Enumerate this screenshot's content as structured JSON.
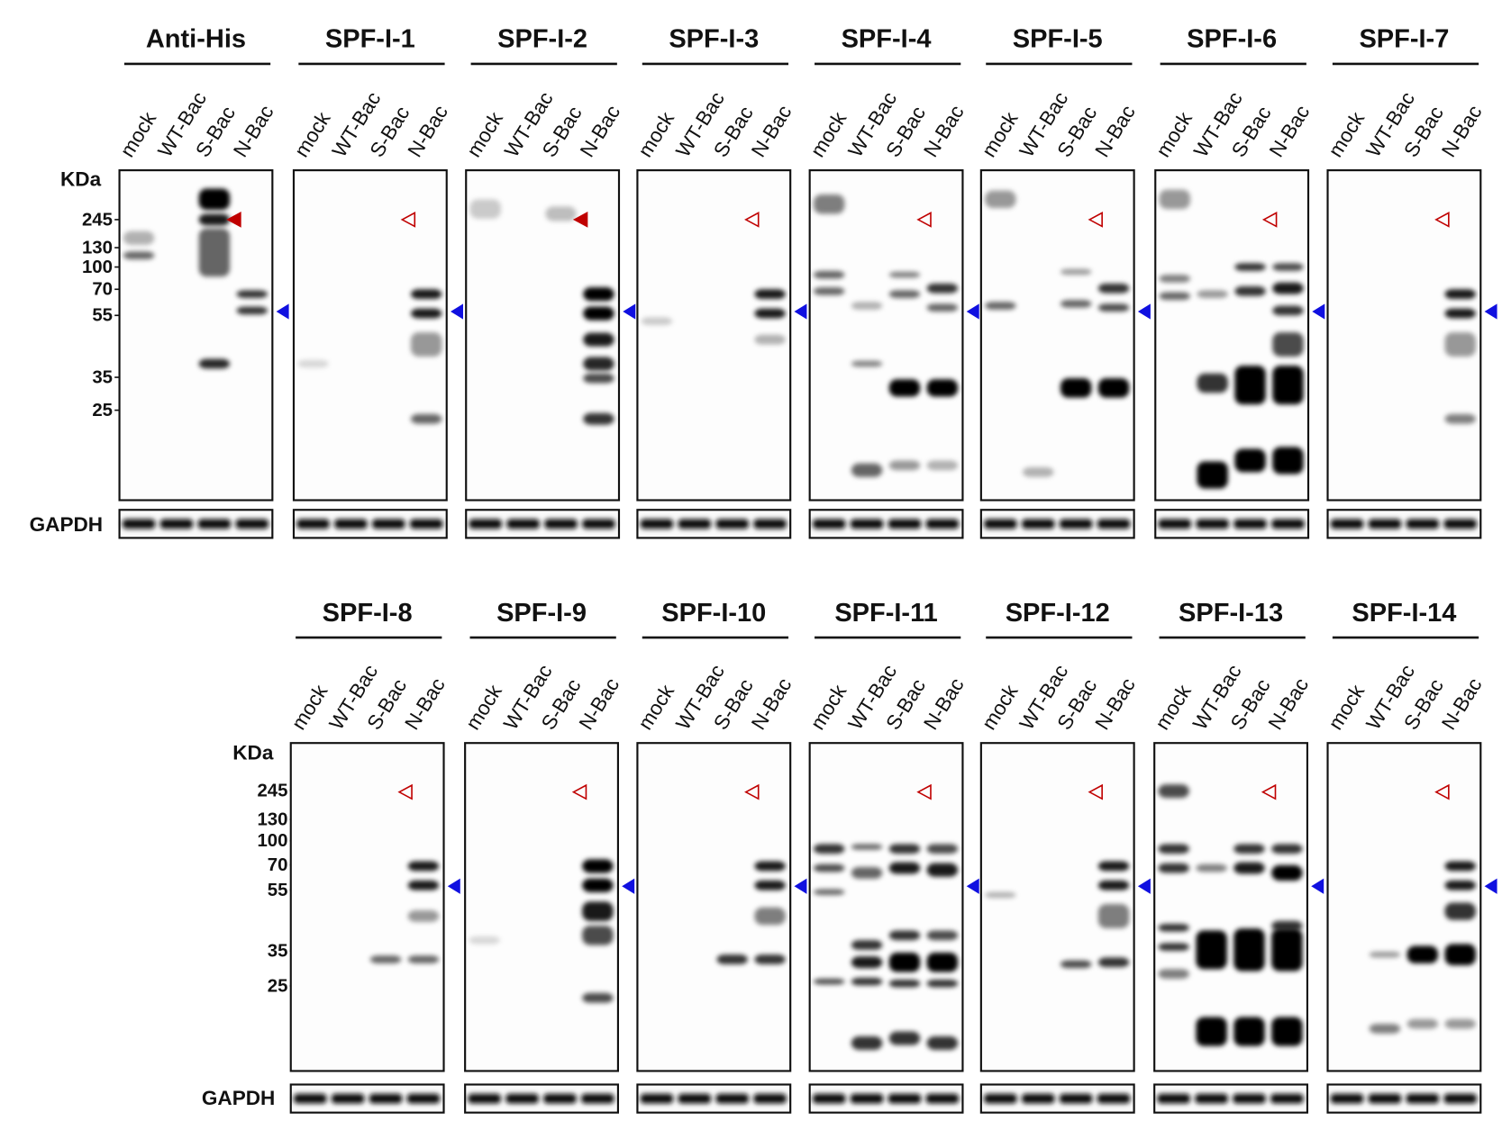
{
  "lanes": [
    "mock",
    "WT-Bac",
    "S-Bac",
    "N-Bac"
  ],
  "rows": [
    {
      "panels": [
        "Anti-His",
        "SPF-I-1",
        "SPF-I-2",
        "SPF-I-3",
        "SPF-I-4",
        "SPF-I-5",
        "SPF-I-6",
        "SPF-I-7"
      ],
      "kda_label": "KDa",
      "markers": [
        245,
        130,
        100,
        70,
        55,
        35,
        25
      ],
      "loading_label": "GAPDH"
    },
    {
      "panels": [
        "SPF-I-8",
        "SPF-I-9",
        "SPF-I-10",
        "SPF-I-11",
        "SPF-I-12",
        "SPF-I-13",
        "SPF-I-14"
      ],
      "kda_label": "KDa",
      "markers": [
        245,
        130,
        100,
        70,
        55,
        35,
        25
      ],
      "loading_label": "GAPDH"
    }
  ]
}
